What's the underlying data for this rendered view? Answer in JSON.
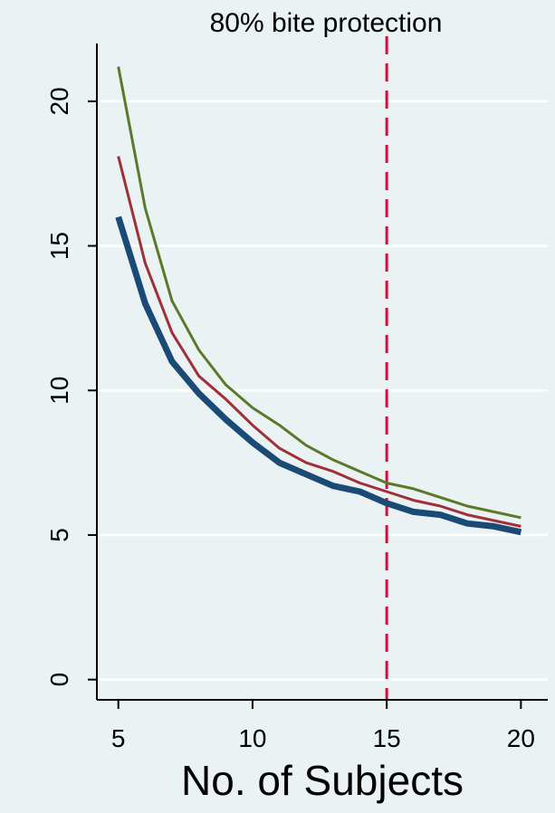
{
  "chart_data": {
    "type": "line",
    "title": "80% bite protection",
    "xlabel": "No. of Subjects",
    "ylabel": "",
    "xlim": [
      4.2,
      21
    ],
    "ylim": [
      -0.7,
      22
    ],
    "xticks": [
      5,
      10,
      15,
      20
    ],
    "yticks": [
      0,
      5,
      10,
      15,
      20
    ],
    "grid": "horizontal",
    "legend": "none",
    "x": [
      5,
      6,
      7,
      8,
      9,
      10,
      11,
      12,
      13,
      14,
      15,
      16,
      17,
      18,
      19,
      20
    ],
    "series": [
      {
        "color": "#5a7a2a",
        "width": "thin",
        "values": [
          21.2,
          16.3,
          13.1,
          11.4,
          10.2,
          9.4,
          8.8,
          8.1,
          7.6,
          7.2,
          6.8,
          6.6,
          6.3,
          6.0,
          5.8,
          5.6
        ]
      },
      {
        "color": "#a03038",
        "width": "thin",
        "values": [
          18.1,
          14.4,
          12.0,
          10.5,
          9.7,
          8.8,
          8.0,
          7.5,
          7.2,
          6.8,
          6.5,
          6.2,
          6.0,
          5.7,
          5.5,
          5.3
        ]
      },
      {
        "color": "#1a4a75",
        "width": "thick",
        "values": [
          16.0,
          13.0,
          11.0,
          9.9,
          9.0,
          8.2,
          7.5,
          7.1,
          6.7,
          6.5,
          6.1,
          5.8,
          5.7,
          5.4,
          5.3,
          5.1
        ]
      }
    ],
    "reference_line": {
      "x": 15,
      "color": "#d0103a",
      "style": "dashed"
    }
  }
}
